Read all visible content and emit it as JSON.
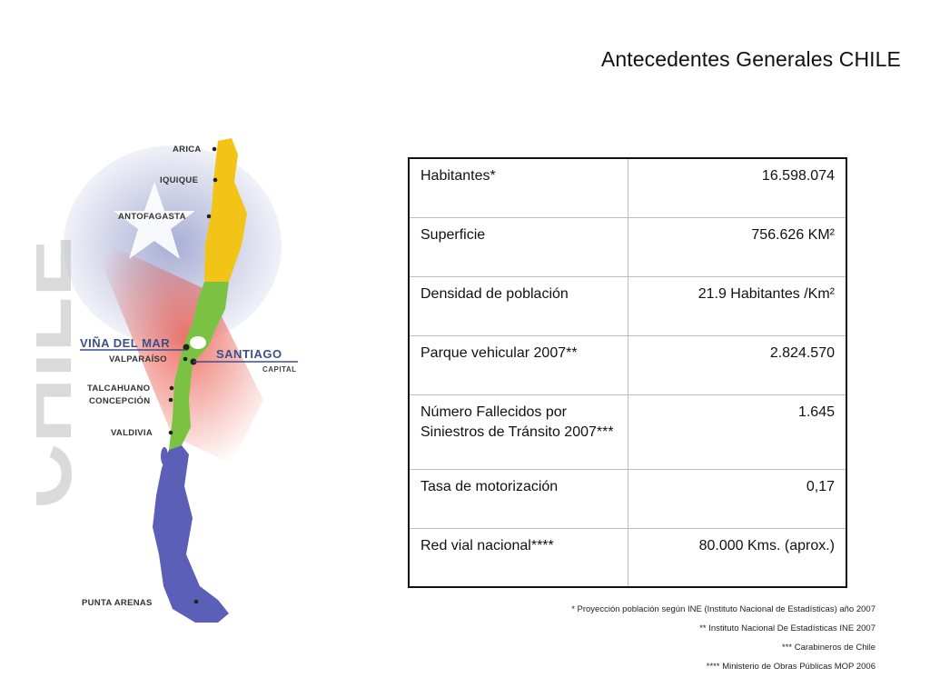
{
  "title": "Antecedentes Generales CHILE",
  "map": {
    "watermark": "CHILE",
    "cities": [
      "ARICA",
      "IQUIQUE",
      "ANTOFAGASTA",
      "VIÑA DEL MAR",
      "VALPARAÍSO",
      "SANTIAGO",
      "TALCAHUANO",
      "CONCEPCIÓN",
      "VALDIVIA",
      "PUNTA ARENAS"
    ],
    "capital_label": "CAPITAL",
    "colors": {
      "north": "#f2c417",
      "center": "#7cc242",
      "south": "#5b5fb8",
      "flag_red": "#e84a3c"
    }
  },
  "table": {
    "rows": [
      {
        "label": "Habitantes*",
        "value": "16.598.074"
      },
      {
        "label": "Superficie",
        "value": "756.626 KM²"
      },
      {
        "label": "Densidad de población",
        "value": "21.9 Habitantes /Km²"
      },
      {
        "label": "Parque vehicular 2007**",
        "value": "2.824.570"
      },
      {
        "label": "Número Fallecidos por Siniestros de Tránsito 2007***",
        "value": "1.645"
      },
      {
        "label": "Tasa de motorización",
        "value": "0,17"
      },
      {
        "label": "Red vial nacional****",
        "value": "80.000 Kms. (aprox.)"
      }
    ]
  },
  "notes": [
    "* Proyección población según INE (Instituto Nacional de Estadísticas) año 2007",
    "** Instituto Nacional De Estadísticas INE 2007",
    "*** Carabineros de Chile",
    "**** Ministerio de Obras Públicas MOP 2006"
  ]
}
